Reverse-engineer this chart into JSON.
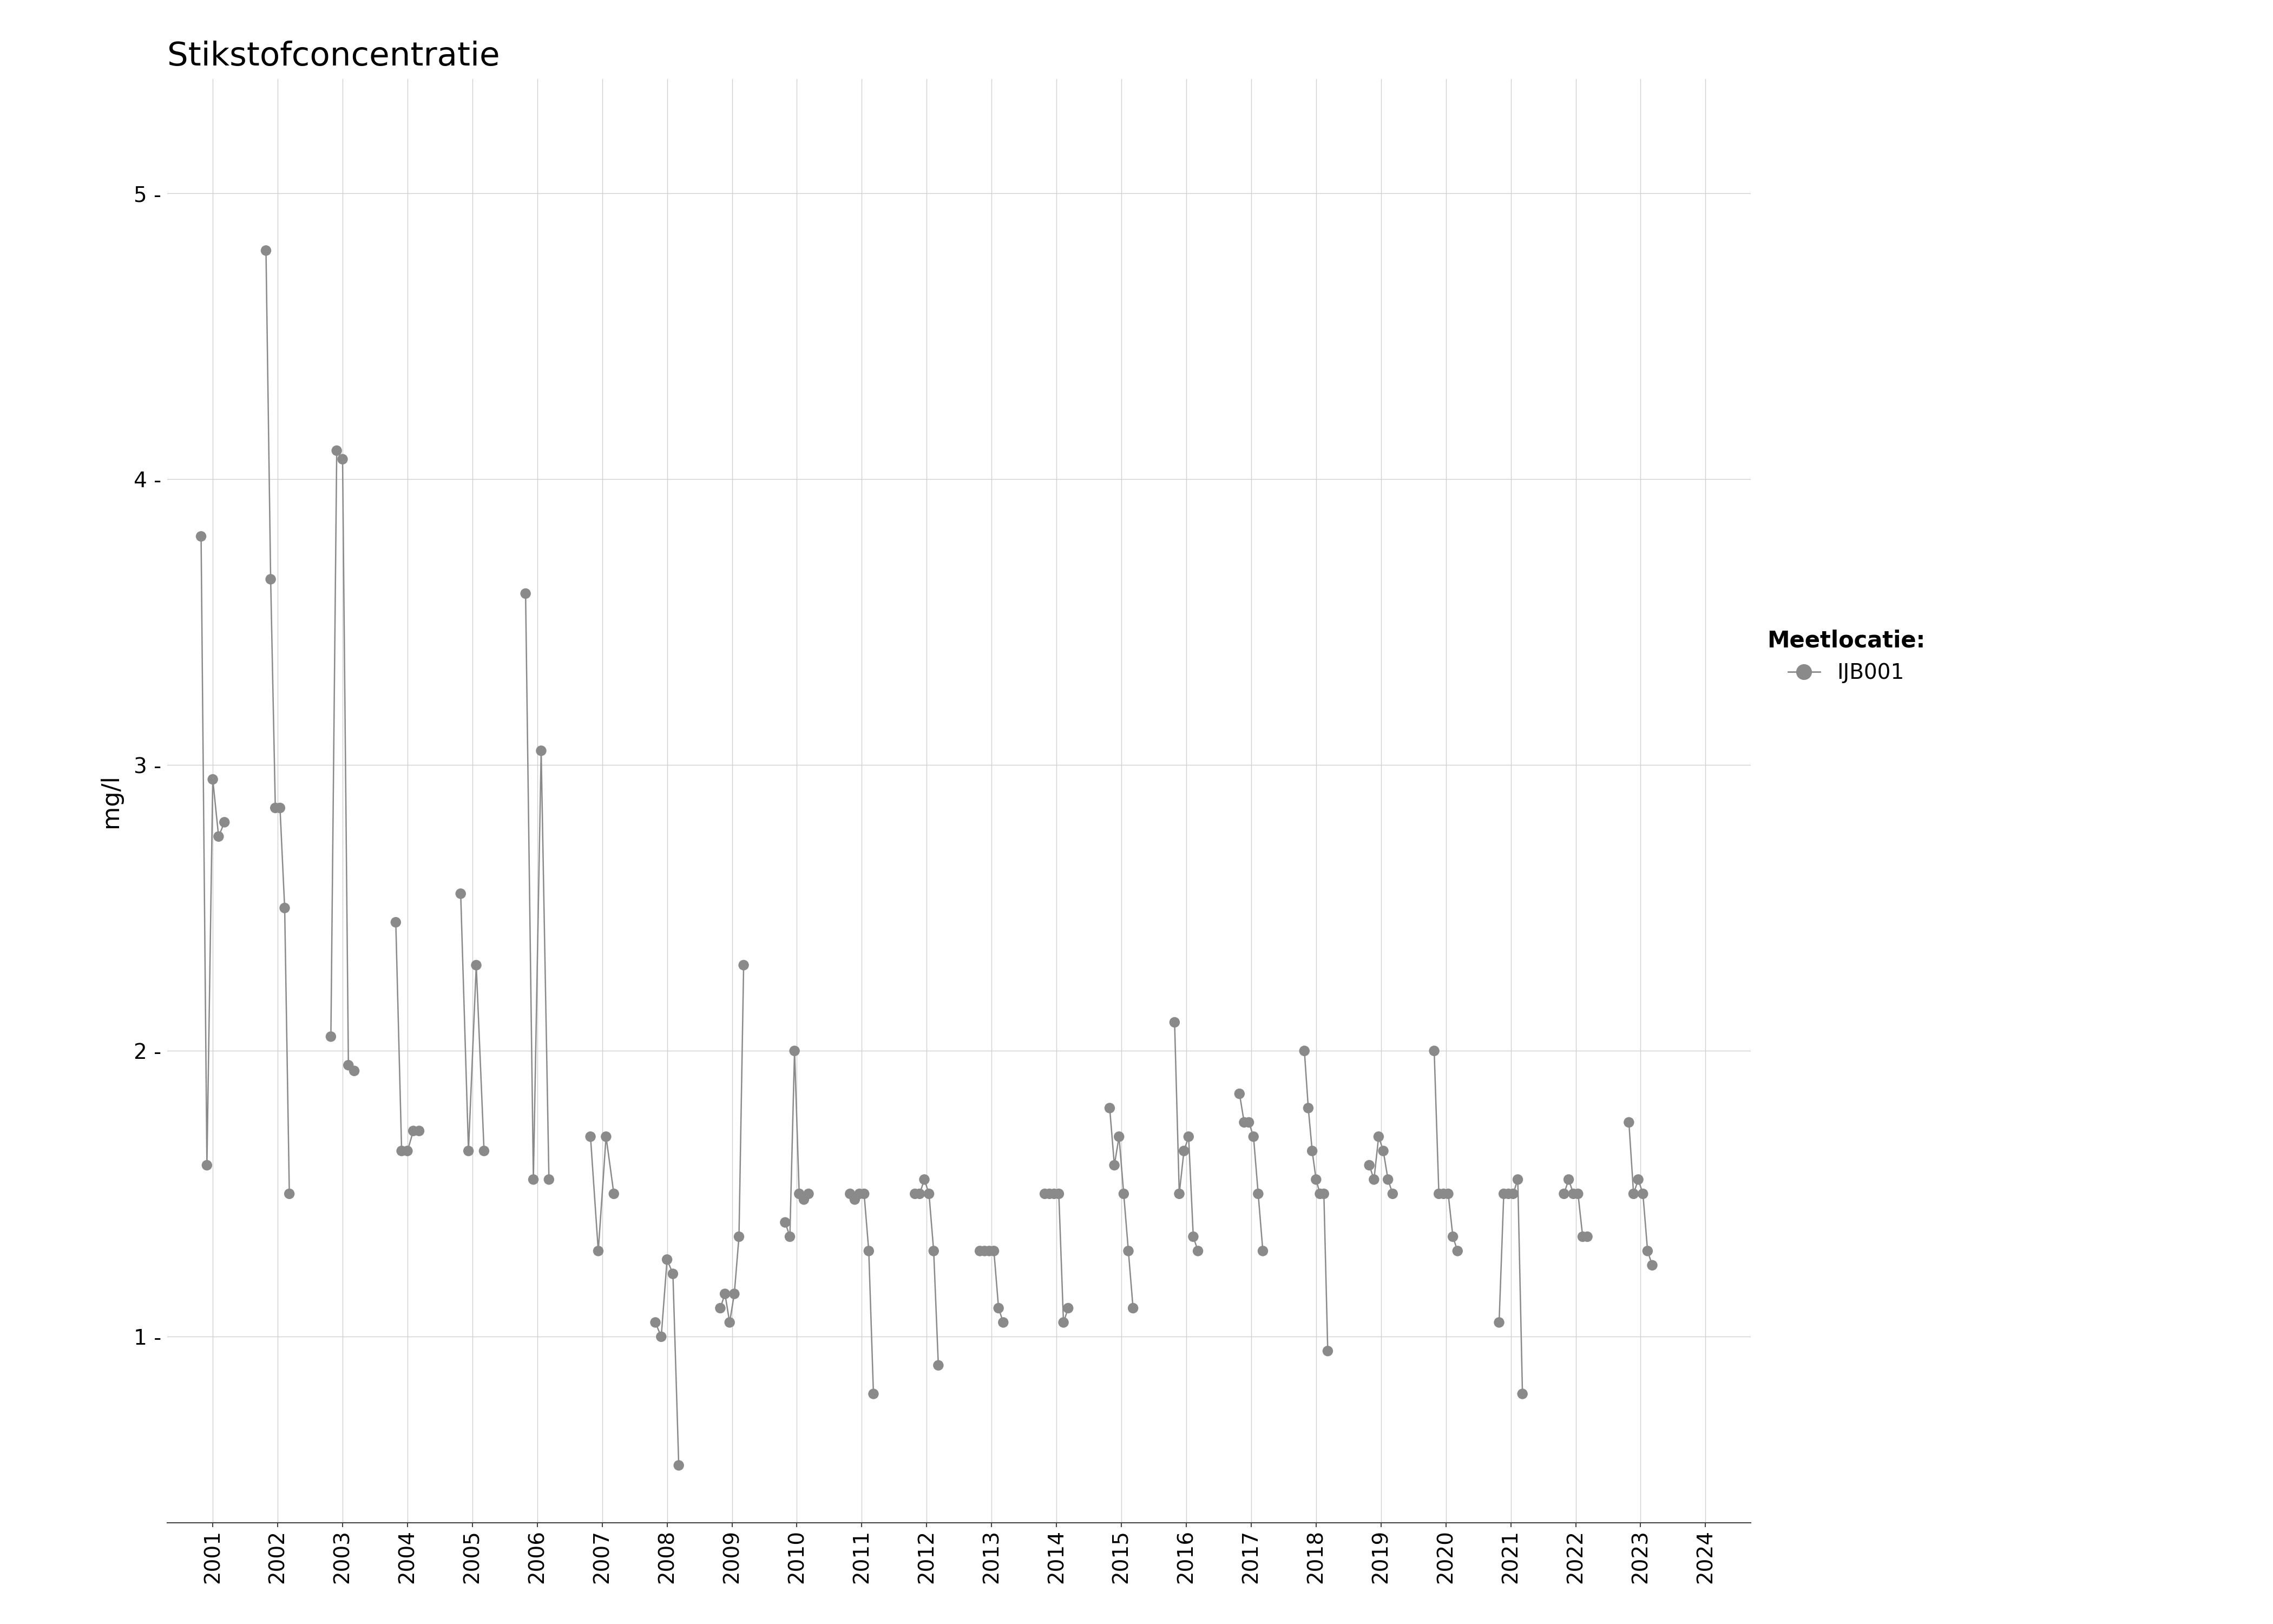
{
  "title": "Stikstofconcentratie",
  "ylabel": "mg/l",
  "legend_title": "Meetlocatie:",
  "legend_label": "IJB001",
  "background_color": "#ffffff",
  "plot_background": "#ffffff",
  "grid_color": "#d0d0d0",
  "line_color": "#8a8a8a",
  "marker_color": "#8a8a8a",
  "marker_size": 14,
  "line_width": 1.8,
  "ylim": [
    0.35,
    5.4
  ],
  "yticks": [
    1,
    2,
    3,
    4,
    5
  ],
  "xlim_min": 2000.3,
  "xlim_max": 2024.7,
  "xtick_years": [
    2001,
    2002,
    2003,
    2004,
    2005,
    2006,
    2007,
    2008,
    2009,
    2010,
    2011,
    2012,
    2013,
    2014,
    2015,
    2016,
    2017,
    2018,
    2019,
    2020,
    2021,
    2022,
    2023,
    2024
  ],
  "year_groups": {
    "2001": [
      3.8,
      1.6,
      2.95,
      2.75,
      2.8
    ],
    "2002": [
      4.8,
      3.65,
      2.85,
      2.85,
      2.5,
      1.5
    ],
    "2003": [
      2.05,
      4.1,
      4.07,
      1.95,
      1.93
    ],
    "2004": [
      2.45,
      1.65,
      1.65,
      1.72,
      1.72
    ],
    "2005": [
      2.55,
      1.65,
      2.3,
      1.65
    ],
    "2006": [
      3.6,
      1.55,
      3.05,
      1.55
    ],
    "2007": [
      1.7,
      1.3,
      1.7,
      1.5
    ],
    "2008": [
      1.05,
      1.0,
      1.27,
      1.22,
      0.55
    ],
    "2009": [
      1.1,
      1.15,
      1.05,
      1.15,
      1.35,
      2.3
    ],
    "2010": [
      1.4,
      1.35,
      2.0,
      1.5,
      1.48,
      1.5
    ],
    "2011": [
      1.5,
      1.48,
      1.5,
      1.5,
      1.3,
      0.8
    ],
    "2012": [
      1.5,
      1.5,
      1.55,
      1.5,
      1.3,
      0.9
    ],
    "2013": [
      1.3,
      1.3,
      1.3,
      1.3,
      1.1,
      1.05
    ],
    "2014": [
      1.5,
      1.5,
      1.5,
      1.5,
      1.05,
      1.1
    ],
    "2015": [
      1.8,
      1.6,
      1.7,
      1.5,
      1.3,
      1.1
    ],
    "2016": [
      2.1,
      1.5,
      1.65,
      1.7,
      1.35,
      1.3
    ],
    "2017": [
      1.85,
      1.75,
      1.75,
      1.7,
      1.5,
      1.3
    ],
    "2018": [
      2.0,
      1.8,
      1.65,
      1.55,
      1.5,
      1.5,
      0.95
    ],
    "2019": [
      1.6,
      1.55,
      1.7,
      1.65,
      1.55,
      1.5
    ],
    "2020": [
      2.0,
      1.5,
      1.5,
      1.5,
      1.35,
      1.3
    ],
    "2021": [
      1.05,
      1.5,
      1.5,
      1.5,
      1.55,
      0.8
    ],
    "2022": [
      1.5,
      1.55,
      1.5,
      1.5,
      1.35,
      1.35
    ],
    "2023": [
      1.75,
      1.5,
      1.55,
      1.5,
      1.3,
      1.25
    ],
    "2024": []
  },
  "title_fontsize": 44,
  "ylabel_fontsize": 32,
  "tick_fontsize": 28
}
